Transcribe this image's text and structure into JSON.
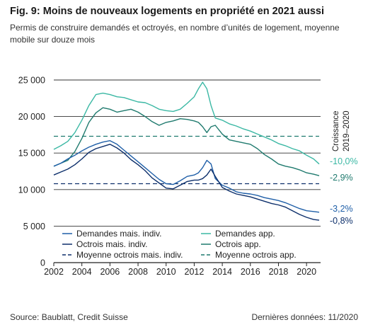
{
  "header": {
    "title": "Fig. 9: Moins de nouveaux logements en propriété en 2021 aussi",
    "subtitle": "Permis de construire demandés et octroyés, en nombre d’unités de logement, moyenne mobile sur douze mois"
  },
  "footer": {
    "source": "Source: Baublatt, Credit Suisse",
    "last_data": "Dernières données: 11/2020"
  },
  "chart_data": {
    "type": "line",
    "xlim": [
      2002,
      2021
    ],
    "ylim": [
      0,
      25000
    ],
    "x_ticks": [
      2002,
      2004,
      2006,
      2008,
      2010,
      2012,
      2014,
      2016,
      2018,
      2020
    ],
    "y_ticks": [
      0,
      5000,
      10000,
      15000,
      20000,
      25000
    ],
    "x_tick_labels": [
      "2002",
      "2004",
      "2006",
      "2008",
      "2010",
      "2012",
      "2014",
      "2016",
      "2018",
      "2020"
    ],
    "y_tick_labels": [
      "0",
      "5 000",
      "10 000",
      "15 000",
      "20 000",
      "25 000"
    ],
    "grid": "horizontal",
    "legend_position": "bottom-left",
    "growth_title": [
      "Croissance",
      "2019–2020"
    ],
    "series": [
      {
        "name": "Demandes mais. indiv.",
        "color": "#1f5fa8",
        "dash": false,
        "growth": "-3,2%",
        "x": [
          2002.0,
          2002.5,
          2003.0,
          2003.5,
          2004.0,
          2004.5,
          2005.0,
          2005.5,
          2006.0,
          2006.5,
          2007.0,
          2007.5,
          2008.0,
          2008.5,
          2009.0,
          2009.5,
          2010.0,
          2010.5,
          2011.0,
          2011.5,
          2012.0,
          2012.3,
          2012.6,
          2012.9,
          2013.2,
          2013.5,
          2014.0,
          2014.5,
          2015.0,
          2015.5,
          2016.0,
          2016.5,
          2017.0,
          2017.5,
          2018.0,
          2018.5,
          2019.0,
          2019.5,
          2020.0,
          2020.5,
          2020.9
        ],
        "y": [
          13200,
          13600,
          14200,
          14700,
          15300,
          15800,
          16200,
          16500,
          16700,
          16200,
          15400,
          14600,
          13800,
          13000,
          12200,
          11400,
          10800,
          10700,
          11200,
          11800,
          12000,
          12300,
          13000,
          14000,
          13500,
          11500,
          10600,
          10200,
          9700,
          9500,
          9400,
          9200,
          8900,
          8700,
          8500,
          8200,
          7800,
          7400,
          7100,
          7000,
          6900
        ]
      },
      {
        "name": "Demandes app.",
        "color": "#3bb8a4",
        "dash": false,
        "growth": "-10,0%",
        "x": [
          2002.0,
          2002.5,
          2003.0,
          2003.5,
          2004.0,
          2004.5,
          2005.0,
          2005.5,
          2006.0,
          2006.5,
          2007.0,
          2007.5,
          2008.0,
          2008.5,
          2009.0,
          2009.5,
          2010.0,
          2010.5,
          2011.0,
          2011.5,
          2012.0,
          2012.3,
          2012.6,
          2012.9,
          2013.2,
          2013.5,
          2014.0,
          2014.5,
          2015.0,
          2015.5,
          2016.0,
          2016.5,
          2017.0,
          2017.5,
          2018.0,
          2018.5,
          2019.0,
          2019.5,
          2020.0,
          2020.5,
          2020.9
        ],
        "y": [
          15500,
          16000,
          16600,
          17800,
          19500,
          21500,
          23000,
          23200,
          23000,
          22700,
          22600,
          22300,
          22000,
          21900,
          21500,
          21000,
          20800,
          20700,
          21000,
          21800,
          22700,
          23800,
          24700,
          23800,
          21500,
          19800,
          19500,
          19000,
          18700,
          18300,
          18000,
          17600,
          17200,
          16800,
          16300,
          16000,
          15600,
          15300,
          14700,
          14200,
          13500
        ]
      },
      {
        "name": "Octrois mais. indiv.",
        "color": "#0d2f6b",
        "dash": false,
        "growth": "-0,8%",
        "x": [
          2002.0,
          2002.5,
          2003.0,
          2003.5,
          2004.0,
          2004.5,
          2005.0,
          2005.5,
          2006.0,
          2006.5,
          2007.0,
          2007.5,
          2008.0,
          2008.5,
          2009.0,
          2009.5,
          2010.0,
          2010.5,
          2011.0,
          2011.5,
          2012.0,
          2012.3,
          2012.6,
          2012.9,
          2013.2,
          2013.5,
          2014.0,
          2014.5,
          2015.0,
          2015.5,
          2016.0,
          2016.5,
          2017.0,
          2017.5,
          2018.0,
          2018.5,
          2019.0,
          2019.5,
          2020.0,
          2020.5,
          2020.9
        ],
        "y": [
          12000,
          12400,
          12800,
          13400,
          14200,
          15100,
          15600,
          15900,
          16200,
          15700,
          15000,
          14100,
          13400,
          12600,
          11600,
          10900,
          10200,
          10100,
          10600,
          11100,
          11300,
          11300,
          11500,
          12000,
          12800,
          11800,
          10300,
          9800,
          9400,
          9200,
          9000,
          8700,
          8400,
          8100,
          7900,
          7600,
          7100,
          6600,
          6200,
          5900,
          5800
        ]
      },
      {
        "name": "Octrois app.",
        "color": "#1f7a6e",
        "dash": false,
        "growth": "-2,9%",
        "x": [
          2002.0,
          2002.5,
          2003.0,
          2003.5,
          2004.0,
          2004.5,
          2005.0,
          2005.5,
          2006.0,
          2006.5,
          2007.0,
          2007.5,
          2008.0,
          2008.5,
          2009.0,
          2009.5,
          2010.0,
          2010.5,
          2011.0,
          2011.5,
          2012.0,
          2012.3,
          2012.6,
          2012.9,
          2013.2,
          2013.5,
          2014.0,
          2014.5,
          2015.0,
          2015.5,
          2016.0,
          2016.5,
          2017.0,
          2017.5,
          2018.0,
          2018.5,
          2019.0,
          2019.5,
          2020.0,
          2020.5,
          2020.9
        ],
        "y": [
          13200,
          13600,
          14000,
          15200,
          17000,
          19200,
          20500,
          21200,
          21000,
          20600,
          20800,
          21000,
          20600,
          20000,
          19300,
          18800,
          19200,
          19400,
          19700,
          19600,
          19400,
          19200,
          18600,
          17800,
          18600,
          18800,
          17600,
          16800,
          16600,
          16400,
          16200,
          15600,
          14800,
          14200,
          13500,
          13200,
          13000,
          12700,
          12300,
          12100,
          11900
        ]
      },
      {
        "name": "Moyenne octrois mais. indiv.",
        "color": "#0d2f6b",
        "dash": true,
        "x": [
          2002.0,
          2020.9
        ],
        "y": [
          10800,
          10800
        ]
      },
      {
        "name": "Moyenne octrois app.",
        "color": "#1f7a6e",
        "dash": true,
        "x": [
          2002.0,
          2020.9
        ],
        "y": [
          17300,
          17300
        ]
      }
    ]
  }
}
